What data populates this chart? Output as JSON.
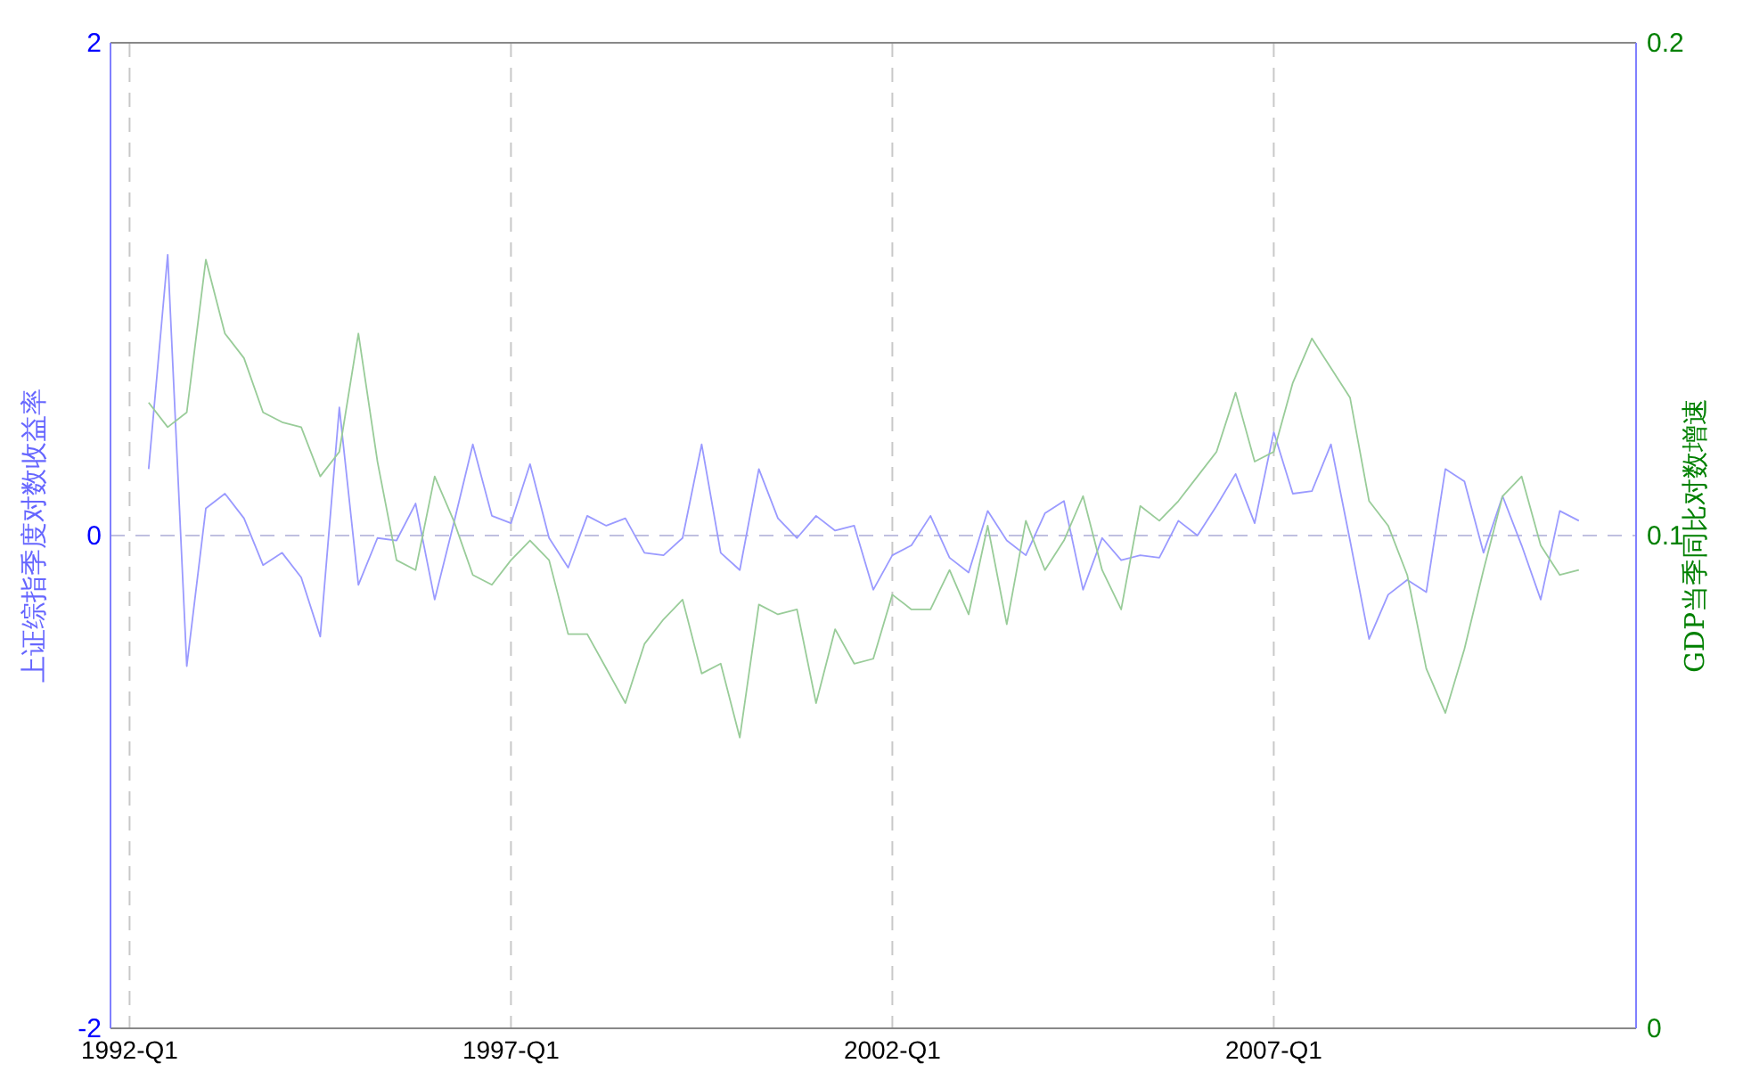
{
  "chart_data": {
    "type": "line",
    "ylabel": "上证综指季度对数收益率",
    "y2label": "GDP当季同比对数增速",
    "categories": [
      "1992-Q1",
      null,
      null,
      null,
      null,
      null,
      null,
      null,
      null,
      null,
      null,
      null,
      null,
      null,
      null,
      null,
      null,
      null,
      null,
      null,
      "1997-Q1",
      null,
      null,
      null,
      null,
      null,
      null,
      null,
      null,
      null,
      null,
      null,
      null,
      null,
      null,
      null,
      null,
      null,
      null,
      null,
      "2002-Q1",
      null,
      null,
      null,
      null,
      null,
      null,
      null,
      null,
      null,
      null,
      null,
      null,
      null,
      null,
      null,
      null,
      null,
      null,
      null,
      "2007-Q1",
      null,
      null,
      null,
      null,
      null,
      null,
      null,
      null,
      null,
      null,
      null,
      null,
      null,
      null,
      null,
      null
    ],
    "ylim": [
      -2,
      2
    ],
    "yticks": [
      -2,
      0,
      2
    ],
    "y2lim": [
      0,
      0.2
    ],
    "y2ticks": [
      0,
      0.1,
      0.2
    ],
    "grid": "x",
    "ref_lines": [
      {
        "axis": "y",
        "value": 0,
        "color": "#c0c0e0",
        "line_style": "dashed"
      }
    ],
    "line_style": "solid",
    "series": [
      {
        "color": "#9a9aff",
        "values": [
          null,
          0.27,
          1.14,
          -0.53,
          0.11,
          0.17,
          0.07,
          -0.12,
          -0.07,
          -0.17,
          -0.41,
          0.52,
          -0.2,
          -0.01,
          -0.02,
          0.13,
          -0.26,
          0.05,
          0.37,
          0.08,
          0.05,
          0.29,
          -0.01,
          -0.13,
          0.08,
          0.04,
          0.07,
          -0.07,
          -0.08,
          -0.01,
          0.37,
          -0.07,
          -0.14,
          0.27,
          0.07,
          -0.01,
          0.08,
          0.02,
          0.04,
          -0.22,
          -0.08,
          -0.04,
          0.08,
          -0.09,
          -0.15,
          0.1,
          -0.02,
          -0.08,
          0.09,
          0.14,
          -0.22,
          -0.01,
          -0.1,
          -0.08,
          -0.09,
          0.06,
          0.0,
          0.12,
          0.25,
          0.05,
          0.42,
          0.17,
          0.18,
          0.37,
          -0.02,
          -0.42,
          -0.24,
          -0.18,
          -0.23,
          0.27,
          0.22,
          -0.07,
          0.16,
          -0.04,
          -0.26,
          0.1,
          0.06
        ]
      },
      {
        "color": "#99cc99",
        "axis": "y2",
        "values": [
          null,
          0.127,
          0.122,
          0.125,
          0.156,
          0.141,
          0.136,
          0.125,
          0.123,
          0.122,
          0.112,
          0.117,
          0.141,
          0.115,
          0.095,
          0.093,
          0.112,
          0.103,
          0.092,
          0.09,
          0.095,
          0.099,
          0.095,
          0.08,
          0.08,
          0.073,
          0.066,
          0.078,
          0.083,
          0.087,
          0.072,
          0.074,
          0.059,
          0.086,
          0.084,
          0.085,
          0.066,
          0.081,
          0.074,
          0.075,
          0.088,
          0.085,
          0.085,
          0.093,
          0.084,
          0.102,
          0.082,
          0.103,
          0.093,
          0.099,
          0.108,
          0.093,
          0.085,
          0.106,
          0.103,
          0.107,
          0.112,
          0.117,
          0.129,
          0.115,
          0.117,
          0.131,
          0.14,
          0.134,
          0.128,
          0.107,
          0.102,
          0.092,
          0.073,
          0.064,
          0.077,
          0.093,
          0.108,
          0.112,
          0.098,
          0.092,
          0.093
        ]
      }
    ]
  }
}
